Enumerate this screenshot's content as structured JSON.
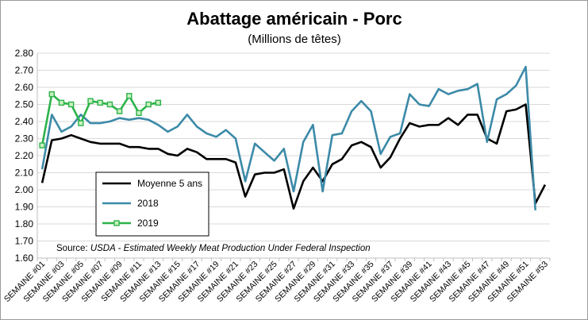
{
  "chart_data": {
    "type": "line",
    "title": "Abattage américain - Porc",
    "subtitle": "(Millions de têtes)",
    "source_prefix": "Source: ",
    "source_italic": "USDA - Estimated Weekly Meat Production Under Federal Inspection",
    "ylim": [
      1.6,
      2.8
    ],
    "yticks": [
      "1.60",
      "1.70",
      "1.80",
      "1.90",
      "2.00",
      "2.10",
      "2.20",
      "2.30",
      "2.40",
      "2.50",
      "2.60",
      "2.70",
      "2.80"
    ],
    "xtick_labels": [
      "SEMAINE #01",
      "SEMAINE #03",
      "SEMAINE #05",
      "SEMAINE #07",
      "SEMAINE #09",
      "SEMAINE #11",
      "SEMAINE #13",
      "SEMAINE #15",
      "SEMAINE #17",
      "SEMAINE #19",
      "SEMAINE #21",
      "SEMAINE #23",
      "SEMAINE #25",
      "SEMAINE #27",
      "SEMAINE #29",
      "SEMAINE #31",
      "SEMAINE #33",
      "SEMAINE #35",
      "SEMAINE #37",
      "SEMAINE #39",
      "SEMAINE #41",
      "SEMAINE #43",
      "SEMAINE #45",
      "SEMAINE #47",
      "SEMAINE #49",
      "SEMAINE #51",
      "SEMAINE #53"
    ],
    "grid": true,
    "legend_position": "bottom-left",
    "series": [
      {
        "name": "Moyenne 5 ans",
        "color": "#000000",
        "marker": "none",
        "values": [
          2.04,
          2.29,
          2.3,
          2.32,
          2.3,
          2.28,
          2.27,
          2.27,
          2.27,
          2.25,
          2.25,
          2.24,
          2.24,
          2.21,
          2.2,
          2.24,
          2.22,
          2.18,
          2.18,
          2.18,
          2.16,
          1.96,
          2.09,
          2.1,
          2.1,
          2.12,
          1.89,
          2.05,
          2.13,
          2.05,
          2.15,
          2.18,
          2.26,
          2.28,
          2.25,
          2.13,
          2.19,
          2.3,
          2.39,
          2.37,
          2.38,
          2.38,
          2.42,
          2.38,
          2.44,
          2.44,
          2.3,
          2.27,
          2.46,
          2.47,
          2.5,
          1.92,
          2.03
        ]
      },
      {
        "name": "2018",
        "color": "#3c8aa8",
        "marker": "none",
        "values": [
          2.12,
          2.44,
          2.34,
          2.37,
          2.44,
          2.39,
          2.39,
          2.4,
          2.42,
          2.41,
          2.42,
          2.41,
          2.38,
          2.34,
          2.37,
          2.44,
          2.37,
          2.33,
          2.31,
          2.35,
          2.3,
          2.05,
          2.27,
          2.22,
          2.17,
          2.24,
          1.99,
          2.28,
          2.38,
          1.99,
          2.32,
          2.33,
          2.46,
          2.52,
          2.46,
          2.21,
          2.31,
          2.33,
          2.56,
          2.5,
          2.49,
          2.59,
          2.56,
          2.58,
          2.59,
          2.62,
          2.28,
          2.53,
          2.56,
          2.61,
          2.72,
          1.88
        ]
      },
      {
        "name": "2019",
        "color": "#2db34a",
        "marker": "square",
        "values": [
          2.26,
          2.56,
          2.51,
          2.5,
          2.39,
          2.52,
          2.51,
          2.5,
          2.46,
          2.55,
          2.45,
          2.5,
          2.51
        ]
      }
    ]
  }
}
